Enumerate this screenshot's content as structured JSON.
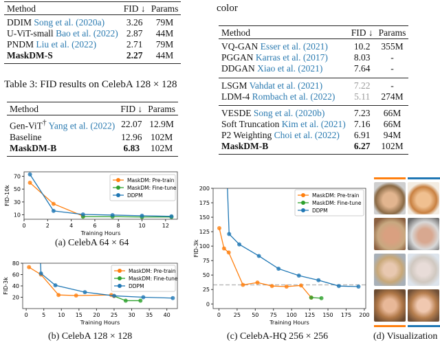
{
  "table_left_top": {
    "headers": [
      "Method",
      "FID ↓",
      "Params"
    ],
    "rows": [
      {
        "method": "DDIM",
        "cite": "Song et al. (2020a)",
        "fid": "3.26",
        "params": "79M"
      },
      {
        "method": "U-ViT-small",
        "cite": "Bao et al. (2022)",
        "fid": "2.87",
        "params": "44M"
      },
      {
        "method": "PNDM",
        "cite": "Liu et al. (2022)",
        "fid": "2.71",
        "params": "79M"
      },
      {
        "method": "MaskDM-S",
        "cite": "",
        "fid": "2.27",
        "params": "44M",
        "bold": true
      }
    ]
  },
  "table3_caption": "Table 3: FID results on CelebA 128 × 128",
  "table_left_bottom": {
    "headers": [
      "Method",
      "FID ↓",
      "Params"
    ],
    "rows": [
      {
        "method": "Gen-ViT",
        "sup": "†",
        "cite": "Yang et al. (2022)",
        "fid": "22.07",
        "params": "12.9M"
      },
      {
        "method": "Baseline",
        "cite": "",
        "fid": "12.96",
        "params": "102M"
      },
      {
        "method": "MaskDM-B",
        "cite": "",
        "fid": "6.83",
        "params": "102M",
        "bold": true
      }
    ]
  },
  "right_fragment": "color",
  "table_right": {
    "headers": [
      "Method",
      "FID ↓",
      "Params"
    ],
    "groups": [
      [
        {
          "method": "VQ-GAN",
          "cite": "Esser et al. (2021)",
          "fid": "10.2",
          "params": "355M"
        },
        {
          "method": "PGGAN",
          "cite": "Karras et al. (2017)",
          "fid": "8.03",
          "params": "-"
        },
        {
          "method": "DDGAN",
          "cite": "Xiao et al. (2021)",
          "fid": "7.64",
          "params": "-"
        }
      ],
      [
        {
          "method": "LSGM",
          "cite": "Vahdat et al. (2021)",
          "fid": "7.22",
          "params": "-",
          "gray": true
        },
        {
          "method": "LDM-4",
          "cite": "Rombach et al. (2022)",
          "fid": "5.11",
          "params": "274M",
          "gray": true
        }
      ],
      [
        {
          "method": "VESDE",
          "cite": "Song et al. (2020b)",
          "fid": "7.23",
          "params": "66M"
        },
        {
          "method": "Soft Truncation",
          "cite": "Kim et al. (2021)",
          "fid": "7.16",
          "params": "66M"
        },
        {
          "method": "P2 Weighting",
          "cite": "Choi et al. (2022)",
          "fid": "6.91",
          "params": "94M"
        },
        {
          "method": "MaskDM-B",
          "cite": "",
          "fid": "6.27",
          "params": "102M",
          "bold": true
        }
      ]
    ]
  },
  "colors": {
    "pretrain": "#ff7f0e",
    "finetune": "#2ca02c",
    "ddpm": "#1f77b4",
    "cite": "#2a7ab0"
  },
  "chart_data": [
    {
      "type": "line",
      "caption": "(a) CelebA 64 × 64",
      "xlabel": "Training Hours",
      "ylabel": "FID-10k",
      "xlim": [
        0,
        13
      ],
      "ylim": [
        3,
        77
      ],
      "xticks": [
        0,
        2,
        4,
        6,
        8,
        10,
        12
      ],
      "yticks": [
        10,
        30,
        50,
        70
      ],
      "legend": "top-right",
      "series": [
        {
          "name": "MaskDM: Pre-train",
          "x": [
            0.5,
            2.5,
            5
          ],
          "y": [
            60,
            27,
            8
          ]
        },
        {
          "name": "MaskDM: Fine-tune",
          "x": [
            5,
            7.5,
            10,
            12.5
          ],
          "y": [
            7,
            7,
            6.5,
            6.5
          ]
        },
        {
          "name": "DDPM",
          "x": [
            0.5,
            2.5,
            5,
            7.5,
            10,
            12.5
          ],
          "y": [
            73,
            16,
            10.5,
            9.5,
            8.5,
            7.5
          ]
        }
      ]
    },
    {
      "type": "line",
      "caption": "(b) CelebA 128 × 128",
      "xlabel": "Training Hours",
      "ylabel": "FID-3k",
      "xlim": [
        -1,
        43
      ],
      "ylim": [
        0,
        80
      ],
      "xticks": [
        0,
        5,
        10,
        15,
        20,
        25,
        30,
        35,
        40
      ],
      "yticks": [
        20,
        40,
        60,
        80
      ],
      "legend": "top-right",
      "series": [
        {
          "name": "MaskDM: Pre-train",
          "x": [
            0.8,
            4.2,
            9.2,
            14.2,
            24.2,
            25
          ],
          "y": [
            73,
            60,
            24,
            23,
            24,
            22
          ]
        },
        {
          "name": "MaskDM: Fine-tune",
          "x": [
            25,
            28.3,
            32.5
          ],
          "y": [
            22,
            14,
            14
          ]
        },
        {
          "name": "DDPM",
          "x": [
            3.8,
            4.2,
            8.3,
            16.7,
            25,
            33.3,
            41.7
          ],
          "y": [
            120,
            62,
            41,
            29,
            22.5,
            20,
            18.5
          ]
        }
      ]
    },
    {
      "type": "line",
      "caption": "(c) CelebA-HQ 256 × 256",
      "xlabel": "Training Hours",
      "ylabel": "FID-3k",
      "xlim": [
        -8,
        202
      ],
      "ylim": [
        -8,
        200
      ],
      "xticks": [
        0,
        25,
        50,
        75,
        100,
        125,
        150,
        175,
        200
      ],
      "yticks": [
        0,
        25,
        50,
        75,
        100,
        125,
        150,
        175,
        200
      ],
      "legend": "top-right",
      "hline": 33,
      "series": [
        {
          "name": "MaskDM: Pre-train",
          "x": [
            0.5,
            7,
            13.5,
            33,
            53,
            73,
            93,
            113,
            127
          ],
          "y": [
            131,
            96,
            89,
            33,
            37,
            31,
            30,
            32,
            11
          ]
        },
        {
          "name": "MaskDM: Fine-tune",
          "x": [
            127,
            141
          ],
          "y": [
            11,
            10
          ]
        },
        {
          "name": "DDPM",
          "x": [
            10,
            14,
            28,
            55,
            82,
            110,
            137,
            165,
            192
          ],
          "y": [
            260,
            121,
            103,
            83,
            61,
            49,
            41,
            31,
            30
          ]
        }
      ]
    }
  ],
  "visualization_caption": "(d) Visualization"
}
